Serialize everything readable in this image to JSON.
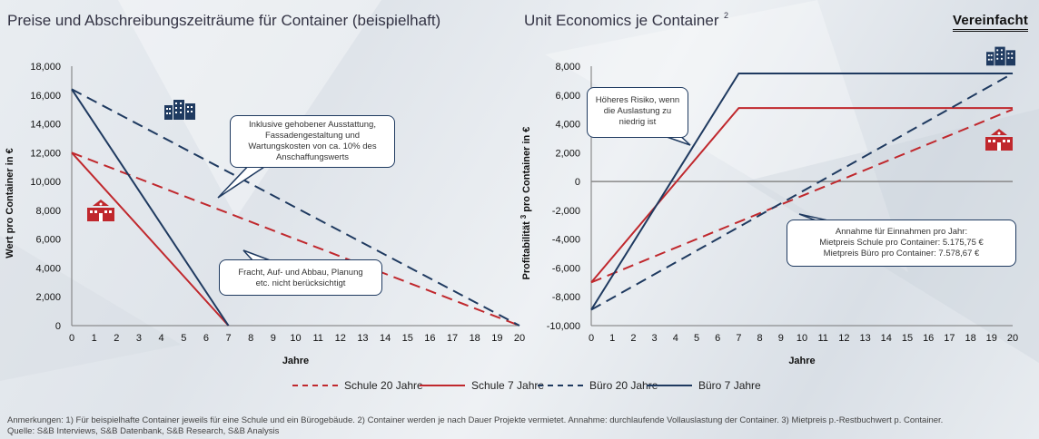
{
  "titles": {
    "left": "Preise und Abschreibungszeiträume für Container (beispielhaft)",
    "right": "Unit Economics je Container",
    "right_sup": "2"
  },
  "logo": "Vereinfacht",
  "colors": {
    "red": "#c0282d",
    "navy": "#1f3a60",
    "zero_line": "#888888"
  },
  "icons": {
    "school": "school-building-icon",
    "office": "office-building-icon"
  },
  "chart_data": [
    {
      "type": "line",
      "ylabel": "Wert pro Container in €",
      "xlabel": "Jahre",
      "x_ticks": [
        0,
        1,
        2,
        3,
        4,
        5,
        6,
        7,
        8,
        9,
        10,
        11,
        12,
        13,
        14,
        15,
        16,
        17,
        18,
        19,
        20
      ],
      "y_ticks": [
        0,
        2000,
        4000,
        6000,
        8000,
        10000,
        12000,
        14000,
        16000,
        18000
      ],
      "y_tick_labels": [
        "0",
        "2,000",
        "4,000",
        "6,000",
        "8,000",
        "10,000",
        "12,000",
        "14,000",
        "16,000",
        "18,000"
      ],
      "xlim": [
        0,
        20
      ],
      "ylim": [
        0,
        18000
      ],
      "grid": false,
      "series": [
        {
          "name": "Schule 20 Jahre",
          "color": "#c0282d",
          "dash": true,
          "x": [
            0,
            20
          ],
          "y": [
            12000,
            0
          ]
        },
        {
          "name": "Schule 7 Jahre",
          "color": "#c0282d",
          "dash": false,
          "x": [
            0,
            7
          ],
          "y": [
            12000,
            0
          ]
        },
        {
          "name": "Büro 20 Jahre",
          "color": "#1f3a60",
          "dash": true,
          "x": [
            0,
            20
          ],
          "y": [
            16400,
            0
          ]
        },
        {
          "name": "Büro 7 Jahre",
          "color": "#1f3a60",
          "dash": false,
          "x": [
            0,
            7
          ],
          "y": [
            16400,
            0
          ]
        }
      ],
      "annotations": [
        "Inklusive gehobener Ausstattung, Fassadengestaltung und Wartungskosten von ca. 10% des Anschaffungswerts",
        "Fracht, Auf- und Abbau, Planung etc. nicht berücksichtigt"
      ]
    },
    {
      "type": "line",
      "ylabel": "Profitabilität",
      "ylabel_sup": "3",
      "ylabel_rest": "pro Container in €",
      "xlabel": "Jahre",
      "x_ticks": [
        0,
        1,
        2,
        3,
        4,
        5,
        6,
        7,
        8,
        9,
        10,
        11,
        12,
        13,
        14,
        15,
        16,
        17,
        18,
        19,
        20
      ],
      "y_ticks": [
        -10000,
        -8000,
        -6000,
        -4000,
        -2000,
        0,
        2000,
        4000,
        6000,
        8000
      ],
      "y_tick_labels": [
        "-10,000",
        "-8,000",
        "-6,000",
        "-4,000",
        "-2,000",
        "0",
        "2,000",
        "4,000",
        "6,000",
        "8,000"
      ],
      "xlim": [
        0,
        20
      ],
      "ylim": [
        -10000,
        8000
      ],
      "grid": false,
      "series": [
        {
          "name": "Schule 20 Jahre",
          "color": "#c0282d",
          "dash": true,
          "x": [
            0,
            20
          ],
          "y": [
            -7000,
            5000
          ]
        },
        {
          "name": "Schule 7 Jahre",
          "color": "#c0282d",
          "dash": false,
          "x": [
            0,
            7,
            20
          ],
          "y": [
            -7000,
            5100,
            5100
          ]
        },
        {
          "name": "Büro 20 Jahre",
          "color": "#1f3a60",
          "dash": true,
          "x": [
            0,
            20
          ],
          "y": [
            -8900,
            7500
          ]
        },
        {
          "name": "Büro 7 Jahre",
          "color": "#1f3a60",
          "dash": false,
          "x": [
            0,
            7,
            20
          ],
          "y": [
            -8900,
            7500,
            7500
          ]
        }
      ],
      "annotations": [
        "Höheres Risiko, wenn die Auslastung zu niedrig ist",
        "Annahme für Einnahmen pro Jahr: Mietpreis Schule pro Container: 5.175,75 € Mietpreis Büro pro Container: 7.578,67 €"
      ]
    }
  ],
  "callouts": {
    "left_top": [
      "Inklusive gehobener Ausstattung,",
      "Fassadengestaltung und",
      "Wartungskosten von ca. 10% des",
      "Anschaffungswerts"
    ],
    "left_bottom": [
      "Fracht, Auf- und Abbau, Planung",
      "etc. nicht berücksichtigt"
    ],
    "right_top": [
      "Höheres Risiko, wenn",
      "die Auslastung zu",
      "niedrig ist"
    ],
    "right_bottom": [
      "Annahme für Einnahmen pro Jahr:",
      "Mietpreis Schule pro Container: 5.175,75 €",
      "Mietpreis Büro pro Container: 7.578,67 €"
    ]
  },
  "legend": [
    "Schule 20 Jahre",
    "Schule 7 Jahre",
    "Büro 20 Jahre",
    "Büro 7 Jahre"
  ],
  "footnotes": {
    "line1": "Anmerkungen: 1) Für beispielhafte Container jeweils für eine Schule und ein Bürogebäude. 2) Container werden je nach Dauer Projekte vermietet. Annahme: durchlaufende Vollauslastung der Container. 3) Mietpreis p.-Restbuchwert p. Container.",
    "line2": "Quelle: S&B Interviews, S&B Datenbank, S&B Research, S&B Analysis"
  }
}
